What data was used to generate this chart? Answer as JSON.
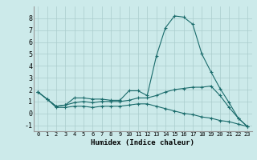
{
  "title": "",
  "xlabel": "Humidex (Indice chaleur)",
  "ylabel": "",
  "background_color": "#cceaea",
  "grid_color": "#aacccc",
  "line_color": "#1a6b6b",
  "x": [
    0,
    1,
    2,
    3,
    4,
    5,
    6,
    7,
    8,
    9,
    10,
    11,
    12,
    13,
    14,
    15,
    16,
    17,
    18,
    19,
    20,
    21,
    22,
    23
  ],
  "line_max": [
    1.8,
    1.2,
    0.6,
    0.7,
    1.3,
    1.3,
    1.2,
    1.2,
    1.1,
    1.1,
    1.9,
    1.9,
    1.5,
    4.8,
    7.2,
    8.2,
    8.1,
    7.5,
    5.0,
    3.5,
    2.1,
    0.9,
    -0.4,
    -1.1
  ],
  "line_mid": [
    1.8,
    1.2,
    0.6,
    0.7,
    0.9,
    1.0,
    0.9,
    1.0,
    1.0,
    1.0,
    1.1,
    1.3,
    1.3,
    1.5,
    1.8,
    2.0,
    2.1,
    2.2,
    2.2,
    2.3,
    1.5,
    0.5,
    -0.4,
    -1.1
  ],
  "line_min": [
    1.8,
    1.2,
    0.5,
    0.5,
    0.6,
    0.6,
    0.5,
    0.6,
    0.6,
    0.6,
    0.7,
    0.8,
    0.8,
    0.6,
    0.4,
    0.2,
    0.0,
    -0.1,
    -0.3,
    -0.4,
    -0.6,
    -0.7,
    -0.9,
    -1.1
  ],
  "xlim": [
    -0.5,
    23.5
  ],
  "ylim": [
    -1.5,
    9.0
  ],
  "yticks": [
    -1,
    0,
    1,
    2,
    3,
    4,
    5,
    6,
    7,
    8
  ],
  "xticks": [
    0,
    1,
    2,
    3,
    4,
    5,
    6,
    7,
    8,
    9,
    10,
    11,
    12,
    13,
    14,
    15,
    16,
    17,
    18,
    19,
    20,
    21,
    22,
    23
  ],
  "xlabel_fontsize": 6.5,
  "tick_fontsize_x": 5.0,
  "tick_fontsize_y": 6.0,
  "linewidth": 0.8,
  "markersize": 2.5
}
